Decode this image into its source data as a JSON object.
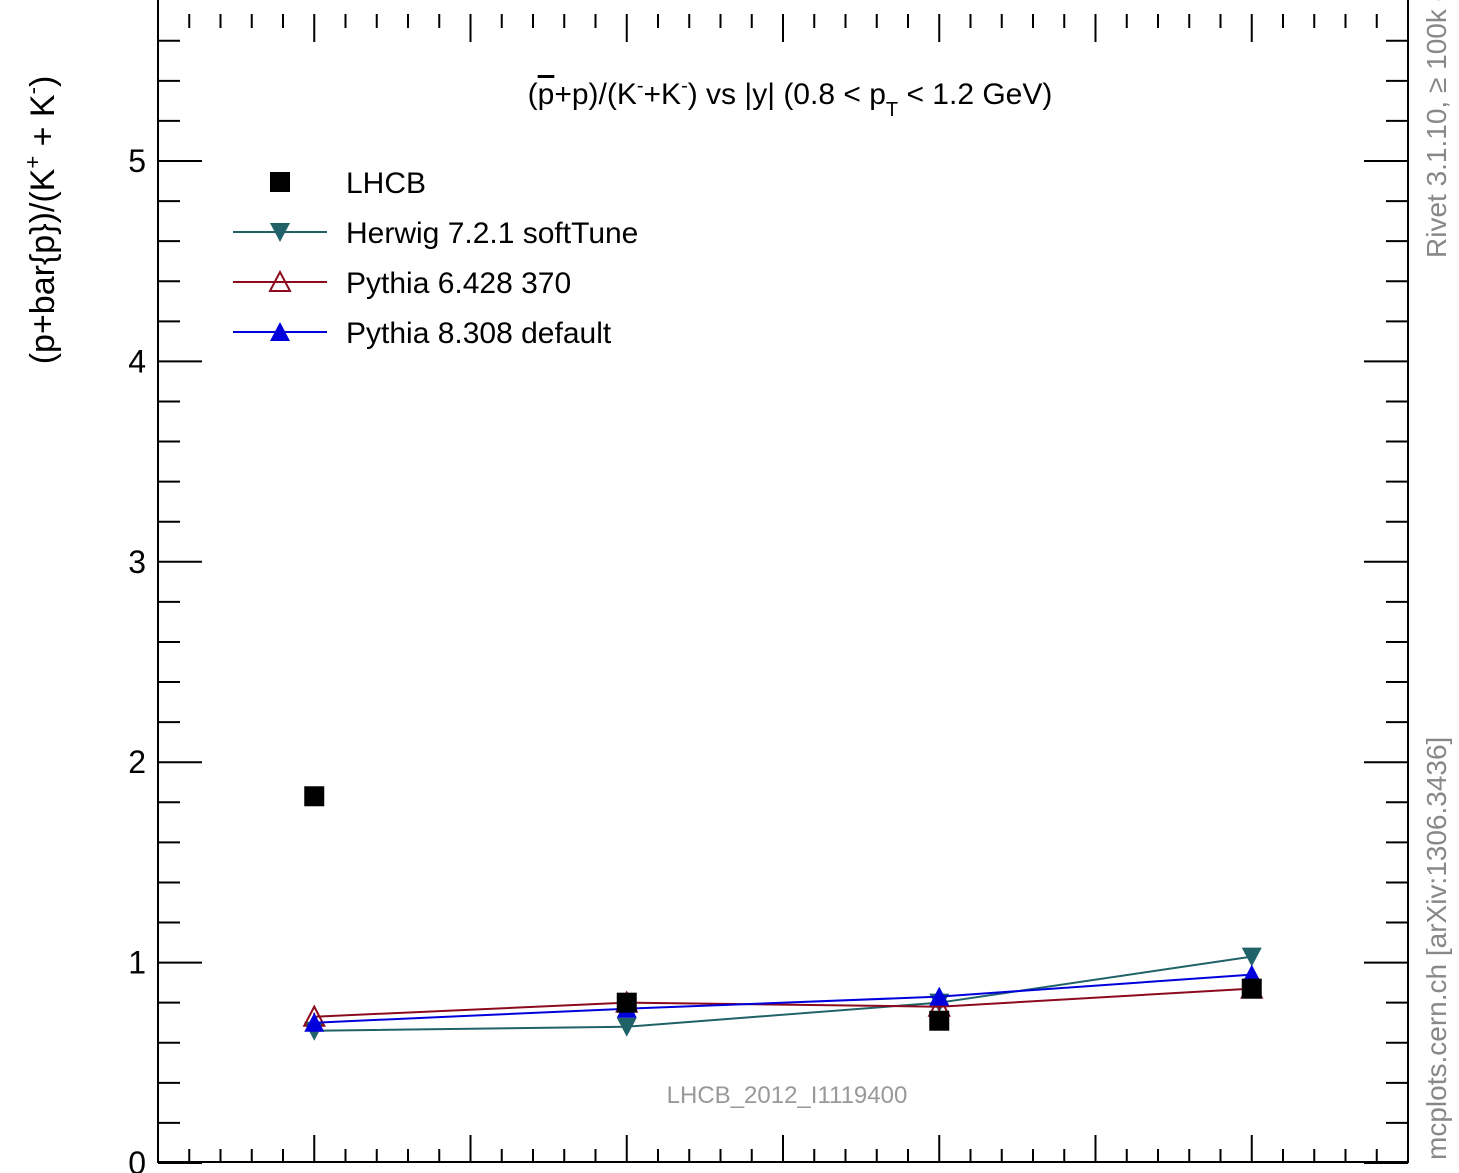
{
  "chart_data": {
    "type": "line",
    "title": "(p̅+p)/(K⁻+K⁻) vs |y| (0.8 < p_T < 1.2 GeV)",
    "title_parts": {
      "a": "(",
      "pbar": "p",
      "b": "+p)/(K",
      "sup1": "-",
      "c": "+K",
      "sup2": "-",
      "d": ") vs |y| (0.8 < p",
      "sub": "T",
      "e": " < 1.2 GeV)"
    },
    "ylabel_parts": {
      "a": "(p+bar{p})/(K",
      "sup1": "+",
      "b": " + K",
      "sup2": "-",
      "c": ")"
    },
    "xlabel": "",
    "ylim": [
      0,
      5.75
    ],
    "xlim": [
      0,
      4
    ],
    "y_major_ticks": [
      0,
      1,
      2,
      3,
      4,
      5
    ],
    "y_tick_labels": [
      "0",
      "1",
      "2",
      "3",
      "4",
      "5"
    ],
    "x": [
      0.5,
      1.5,
      2.5,
      3.5
    ],
    "grid": false,
    "legend_position": "top-left",
    "series": [
      {
        "name": "LHCB",
        "marker": "square",
        "color": "#000000",
        "line": false,
        "values": [
          1.83,
          0.8,
          0.71,
          0.87
        ],
        "errors": [
          0.02,
          0.02,
          0.02,
          0.02
        ]
      },
      {
        "name": "Herwig 7.2.1 softTune",
        "marker": "triangle-down",
        "color": "#1f6267",
        "line": true,
        "values": [
          0.66,
          0.68,
          0.8,
          1.03
        ],
        "errors": [
          0.02,
          0.02,
          0.02,
          0.02
        ]
      },
      {
        "name": "Pythia 6.428 370",
        "marker": "triangle-up-open",
        "color": "#8b0a1e",
        "line": true,
        "values": [
          0.73,
          0.8,
          0.78,
          0.87
        ],
        "errors": [
          0.02,
          0.02,
          0.02,
          0.02
        ]
      },
      {
        "name": "Pythia 8.308 default",
        "marker": "triangle-up",
        "color": "#0000dd",
        "line": true,
        "values": [
          0.7,
          0.77,
          0.83,
          0.94
        ],
        "errors": [
          0.02,
          0.02,
          0.03,
          0.03
        ]
      }
    ],
    "annotation": "LHCB_2012_I1119400",
    "side_label_top": "Rivet 3.1.10, ≥ 100k events",
    "side_label_bottom": "mcplots.cern.ch [arXiv:1306.3436]"
  }
}
